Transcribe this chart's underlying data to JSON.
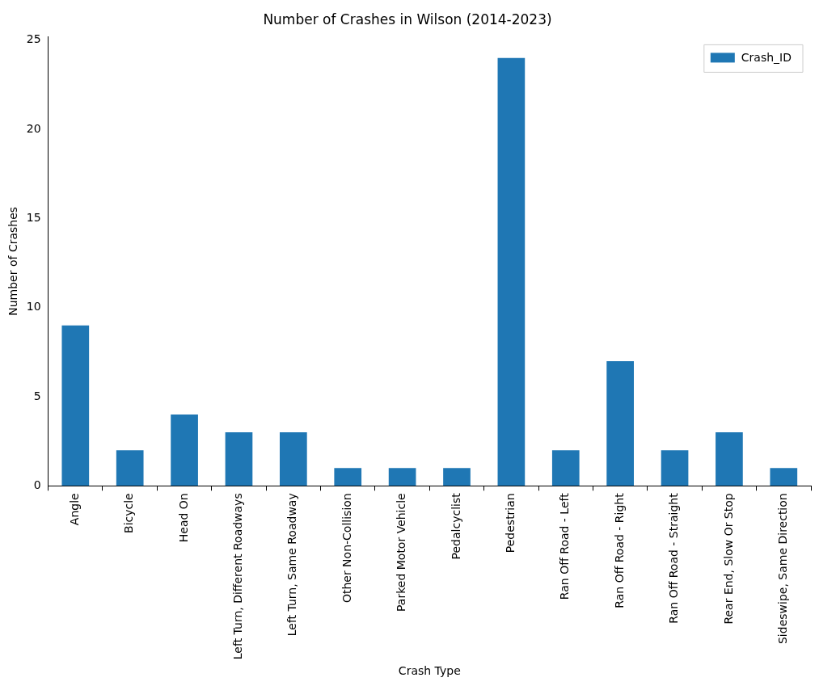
{
  "chart_data": {
    "type": "bar",
    "title": "Number of Crashes in Wilson (2014-2023)",
    "xlabel": "Crash Type",
    "ylabel": "Number of Crashes",
    "categories": [
      "Angle",
      "Bicycle",
      "Head On",
      "Left Turn, Different Roadways",
      "Left Turn, Same Roadway",
      "Other Non-Collision",
      "Parked Motor Vehicle",
      "Pedalcyclist",
      "Pedestrian",
      "Ran Off Road - Left",
      "Ran Off Road - Right",
      "Ran Off Road - Straight",
      "Rear End, Slow Or Stop",
      "Sideswipe, Same Direction"
    ],
    "series": [
      {
        "name": "Crash_ID",
        "color": "#1f77b4",
        "values": [
          9,
          2,
          4,
          3,
          3,
          1,
          1,
          1,
          24,
          2,
          7,
          2,
          3,
          1
        ]
      }
    ],
    "ylim": [
      0,
      25.2
    ],
    "yticks": [
      0,
      5,
      10,
      15,
      20,
      25
    ],
    "grid": false,
    "legend": "top right"
  }
}
